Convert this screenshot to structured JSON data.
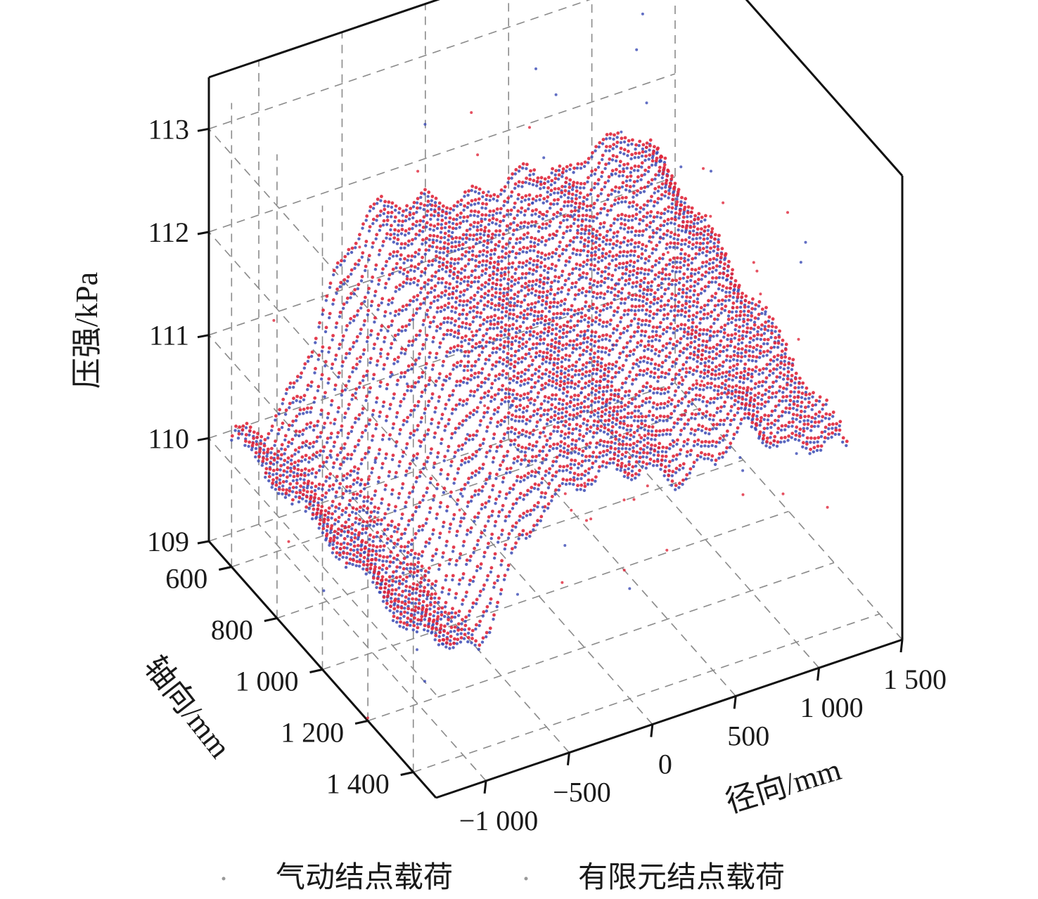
{
  "chart_data": {
    "type": "scatter",
    "title": "",
    "zlabel": "压强/kPa",
    "ylabel": "轴向/mm",
    "xlabel": "径向/mm",
    "z_ticks": [
      "109",
      "110",
      "111",
      "112",
      "113"
    ],
    "y_ticks": [
      "600",
      "800",
      "1 000",
      "1 200",
      "1 400"
    ],
    "x_ticks": [
      "−1 000",
      "−500",
      "0",
      "500",
      "1 000",
      "1 500"
    ],
    "zlim": [
      109,
      113.5
    ],
    "ylim": [
      500,
      1500
    ],
    "xlim": [
      -1300,
      1500
    ],
    "grid": true,
    "legend_position": "bottom",
    "series": [
      {
        "name": "气动结点载荷",
        "color": "#3b4bb5"
      },
      {
        "name": "有限元结点载荷",
        "color": "#e0263a"
      }
    ],
    "surface_profile": {
      "x": [
        -1300,
        -1100,
        -900,
        -700,
        -500,
        -300,
        -100,
        100,
        300,
        500,
        700,
        900,
        1100,
        1300
      ],
      "z_by_axial_600": [
        110.3,
        110.2,
        110.6,
        111.4,
        112.0,
        112.0,
        111.9,
        111.8,
        111.8,
        111.9,
        111.7,
        111.9,
        111.9,
        111.5
      ],
      "z_by_axial_1400": [
        110.4,
        110.2,
        110.0,
        110.8,
        111.2,
        111.3,
        111.3,
        111.2,
        111.0,
        111.1,
        111.3,
        111.0,
        110.9,
        110.8
      ]
    }
  }
}
